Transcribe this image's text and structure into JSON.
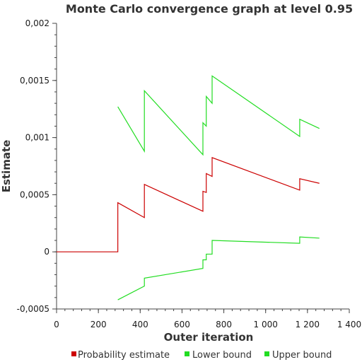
{
  "chart_data": {
    "type": "line",
    "title": "Monte Carlo convergence graph at level 0.95",
    "xlabel": "Outer iteration",
    "ylabel": "Estimate",
    "xlim": [
      0,
      1400
    ],
    "ylim": [
      -0.0005,
      0.002
    ],
    "x_ticks": [
      0,
      200,
      400,
      600,
      800,
      1000,
      1200,
      1400
    ],
    "x_tick_labels": [
      "0",
      "200",
      "400",
      "600",
      "800",
      "1 000",
      "1 200",
      "1 400"
    ],
    "y_ticks": [
      -0.0005,
      0,
      0.0005,
      0.001,
      0.0015,
      0.002
    ],
    "y_tick_labels": [
      "-0,0005",
      "0",
      "0,0005",
      "0,001",
      "0,0015",
      "0,002"
    ],
    "grid": false,
    "legend_position": "bottom",
    "series": [
      {
        "name": "Probability estimate",
        "color": "#cc0000",
        "points": [
          [
            0,
            0
          ],
          [
            293,
            0
          ],
          [
            293,
            0.00043
          ],
          [
            420,
            0.0003
          ],
          [
            420,
            0.00059
          ],
          [
            700,
            0.000355
          ],
          [
            700,
            0.00053
          ],
          [
            716,
            0.00052
          ],
          [
            716,
            0.000685
          ],
          [
            744,
            0.00066
          ],
          [
            744,
            0.000825
          ],
          [
            1163,
            0.00054
          ],
          [
            1163,
            0.00064
          ],
          [
            1257,
            0.0006
          ]
        ]
      },
      {
        "name": "Lower bound",
        "color": "#22dd22",
        "points": [
          [
            293,
            -0.00042
          ],
          [
            420,
            -0.0003
          ],
          [
            420,
            -0.00023
          ],
          [
            700,
            -0.000145
          ],
          [
            700,
            -7e-05
          ],
          [
            716,
            -7e-05
          ],
          [
            716,
            -2e-05
          ],
          [
            744,
            -2e-05
          ],
          [
            744,
            0.0001
          ],
          [
            1163,
            7.5e-05
          ],
          [
            1163,
            0.00013
          ],
          [
            1257,
            0.00012
          ]
        ]
      },
      {
        "name": "Upper bound",
        "color": "#22dd22",
        "points": [
          [
            293,
            0.00127
          ],
          [
            420,
            0.00088
          ],
          [
            420,
            0.00141
          ],
          [
            700,
            0.00085
          ],
          [
            700,
            0.00113
          ],
          [
            716,
            0.0011
          ],
          [
            716,
            0.00136
          ],
          [
            744,
            0.0013
          ],
          [
            744,
            0.00154
          ],
          [
            1163,
            0.00101
          ],
          [
            1163,
            0.00116
          ],
          [
            1257,
            0.00108
          ]
        ]
      }
    ]
  }
}
